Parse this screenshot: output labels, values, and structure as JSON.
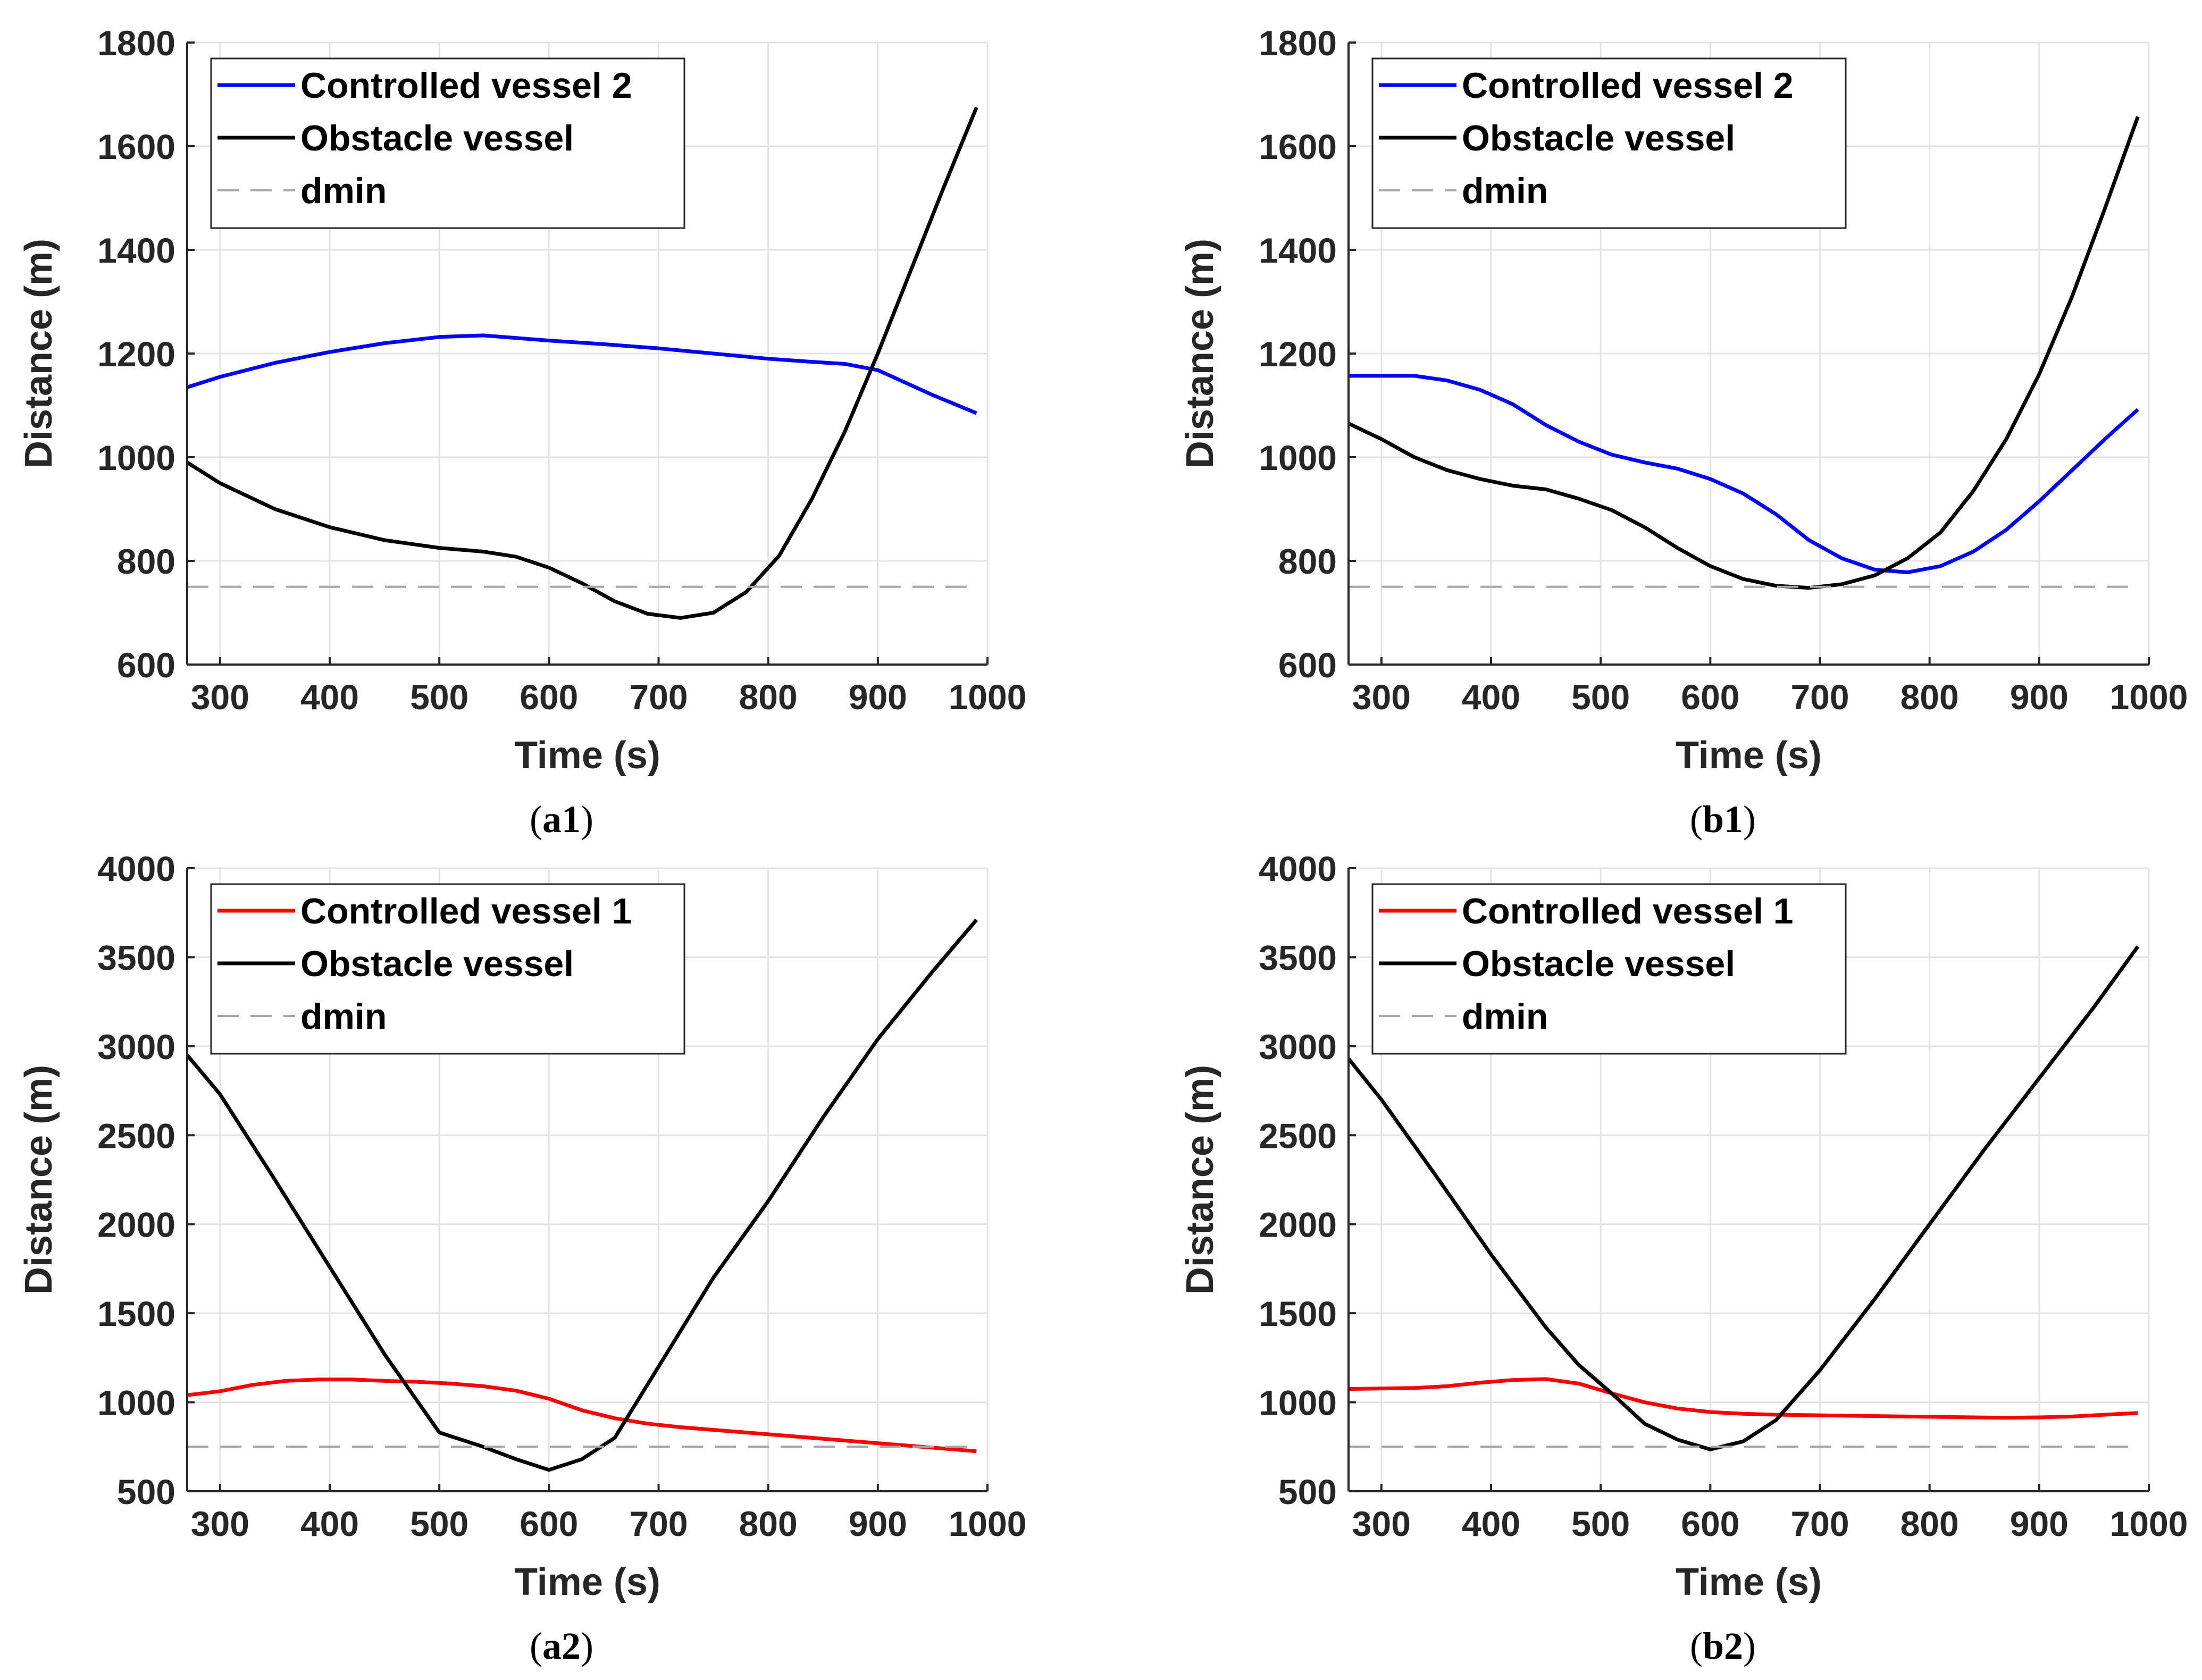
{
  "colors": {
    "blue": "#0000ff",
    "red": "#ff0000",
    "black": "#000000",
    "dmin": "#a6a6a6",
    "grid": "#e3e3e3",
    "axis": "#262626"
  },
  "chart_data": [
    {
      "id": "a1",
      "type": "line",
      "caption": {
        "open": "(",
        "label": "a1",
        "close": ")"
      },
      "xlabel": "Time (s)",
      "ylabel": "Distance (m)",
      "xlim": [
        270,
        1000
      ],
      "ylim": [
        600,
        1800
      ],
      "xticks": [
        "300",
        "400",
        "500",
        "600",
        "700",
        "800",
        "900",
        "1000"
      ],
      "yticks": [
        "600",
        "800",
        "1000",
        "1200",
        "1400",
        "1600",
        "1800"
      ],
      "grid": true,
      "legend_position": "top-left",
      "series": [
        {
          "name": "Controlled vessel 2",
          "color": "#0000ff",
          "style": "solid",
          "x": [
            270,
            300,
            350,
            400,
            450,
            500,
            540,
            600,
            650,
            700,
            750,
            800,
            840,
            870,
            900,
            950,
            990
          ],
          "y": [
            1135,
            1155,
            1182,
            1203,
            1220,
            1232,
            1235,
            1225,
            1218,
            1210,
            1200,
            1190,
            1184,
            1180,
            1168,
            1120,
            1085
          ]
        },
        {
          "name": "Obstacle vessel",
          "color": "#000000",
          "style": "solid",
          "x": [
            270,
            300,
            350,
            400,
            450,
            500,
            540,
            570,
            600,
            630,
            660,
            690,
            720,
            750,
            780,
            810,
            840,
            870,
            900,
            930,
            960,
            990
          ],
          "y": [
            990,
            950,
            900,
            865,
            840,
            825,
            818,
            808,
            787,
            757,
            722,
            698,
            690,
            700,
            740,
            810,
            920,
            1050,
            1200,
            1360,
            1520,
            1675
          ]
        },
        {
          "name": "dmin",
          "color": "#a6a6a6",
          "style": "dashed",
          "x": [
            270,
            990
          ],
          "y": [
            750,
            750
          ]
        }
      ]
    },
    {
      "id": "b1",
      "type": "line",
      "caption": {
        "open": "(",
        "label": "b1",
        "close": ")"
      },
      "xlabel": "Time (s)",
      "ylabel": "Distance (m)",
      "xlim": [
        270,
        1000
      ],
      "ylim": [
        600,
        1800
      ],
      "xticks": [
        "300",
        "400",
        "500",
        "600",
        "700",
        "800",
        "900",
        "1000"
      ],
      "yticks": [
        "600",
        "800",
        "1000",
        "1200",
        "1400",
        "1600",
        "1800"
      ],
      "grid": true,
      "legend_position": "top-left",
      "series": [
        {
          "name": "Controlled vessel 2",
          "color": "#0000ff",
          "style": "solid",
          "x": [
            270,
            330,
            360,
            390,
            420,
            450,
            480,
            510,
            540,
            570,
            600,
            630,
            660,
            690,
            720,
            750,
            780,
            810,
            840,
            870,
            900,
            930,
            960,
            990
          ],
          "y": [
            1157,
            1157,
            1148,
            1130,
            1102,
            1062,
            1030,
            1005,
            990,
            978,
            958,
            930,
            890,
            840,
            805,
            783,
            778,
            790,
            818,
            860,
            915,
            975,
            1035,
            1092
          ]
        },
        {
          "name": "Obstacle vessel",
          "color": "#000000",
          "style": "solid",
          "x": [
            270,
            300,
            330,
            360,
            390,
            420,
            450,
            480,
            510,
            540,
            570,
            600,
            630,
            660,
            690,
            720,
            750,
            780,
            810,
            840,
            870,
            900,
            930,
            960,
            990
          ],
          "y": [
            1065,
            1035,
            1000,
            975,
            958,
            945,
            938,
            920,
            898,
            865,
            825,
            790,
            765,
            752,
            748,
            755,
            772,
            805,
            855,
            935,
            1035,
            1160,
            1310,
            1480,
            1657
          ]
        },
        {
          "name": "dmin",
          "color": "#a6a6a6",
          "style": "dashed",
          "x": [
            270,
            990
          ],
          "y": [
            750,
            750
          ]
        }
      ]
    },
    {
      "id": "a2",
      "type": "line",
      "caption": {
        "open": "(",
        "label": "a2",
        "close": ")"
      },
      "xlabel": "Time (s)",
      "ylabel": "Distance (m)",
      "xlim": [
        270,
        1000
      ],
      "ylim": [
        500,
        4000
      ],
      "xticks": [
        "300",
        "400",
        "500",
        "600",
        "700",
        "800",
        "900",
        "1000"
      ],
      "yticks": [
        "500",
        "1000",
        "1500",
        "2000",
        "2500",
        "3000",
        "3500",
        "4000"
      ],
      "grid": true,
      "legend_position": "top-left",
      "series": [
        {
          "name": "Controlled vessel 1",
          "color": "#ff0000",
          "style": "solid",
          "x": [
            270,
            300,
            330,
            360,
            390,
            420,
            450,
            480,
            510,
            540,
            570,
            600,
            630,
            660,
            690,
            720,
            750,
            780,
            810,
            840,
            870,
            900,
            930,
            960,
            990
          ],
          "y": [
            1040,
            1062,
            1098,
            1120,
            1128,
            1128,
            1120,
            1115,
            1105,
            1090,
            1065,
            1020,
            955,
            910,
            880,
            860,
            845,
            830,
            815,
            800,
            785,
            770,
            755,
            740,
            725
          ]
        },
        {
          "name": "Obstacle vessel",
          "color": "#000000",
          "style": "solid",
          "x": [
            270,
            300,
            350,
            400,
            450,
            500,
            540,
            570,
            600,
            630,
            660,
            700,
            750,
            800,
            850,
            900,
            950,
            990
          ],
          "y": [
            2950,
            2730,
            2250,
            1760,
            1270,
            830,
            750,
            680,
            620,
            680,
            800,
            1200,
            1700,
            2130,
            2600,
            3040,
            3420,
            3710
          ]
        },
        {
          "name": "dmin",
          "color": "#a6a6a6",
          "style": "dashed",
          "x": [
            270,
            990
          ],
          "y": [
            750,
            750
          ]
        }
      ]
    },
    {
      "id": "b2",
      "type": "line",
      "caption": {
        "open": "(",
        "label": "b2",
        "close": ")"
      },
      "xlabel": "Time (s)",
      "ylabel": "Distance (m)",
      "xlim": [
        270,
        1000
      ],
      "ylim": [
        500,
        4000
      ],
      "xticks": [
        "300",
        "400",
        "500",
        "600",
        "700",
        "800",
        "900",
        "1000"
      ],
      "yticks": [
        "500",
        "1000",
        "1500",
        "2000",
        "2500",
        "3000",
        "3500",
        "4000"
      ],
      "grid": true,
      "legend_position": "top-left",
      "series": [
        {
          "name": "Controlled vessel 1",
          "color": "#ff0000",
          "style": "solid",
          "x": [
            270,
            330,
            360,
            390,
            420,
            450,
            480,
            510,
            540,
            570,
            600,
            630,
            660,
            720,
            780,
            840,
            870,
            900,
            930,
            960,
            990
          ],
          "y": [
            1075,
            1080,
            1090,
            1110,
            1125,
            1130,
            1105,
            1050,
            1000,
            965,
            945,
            935,
            930,
            925,
            920,
            915,
            913,
            915,
            920,
            930,
            940
          ]
        },
        {
          "name": "Obstacle vessel",
          "color": "#000000",
          "style": "solid",
          "x": [
            270,
            300,
            350,
            400,
            450,
            480,
            510,
            540,
            570,
            600,
            630,
            660,
            700,
            750,
            800,
            850,
            900,
            950,
            990
          ],
          "y": [
            2930,
            2700,
            2270,
            1830,
            1420,
            1210,
            1050,
            880,
            790,
            735,
            780,
            900,
            1180,
            1580,
            2000,
            2420,
            2820,
            3220,
            3560
          ]
        },
        {
          "name": "dmin",
          "color": "#a6a6a6",
          "style": "dashed",
          "x": [
            270,
            990
          ],
          "y": [
            750,
            750
          ]
        }
      ]
    }
  ]
}
